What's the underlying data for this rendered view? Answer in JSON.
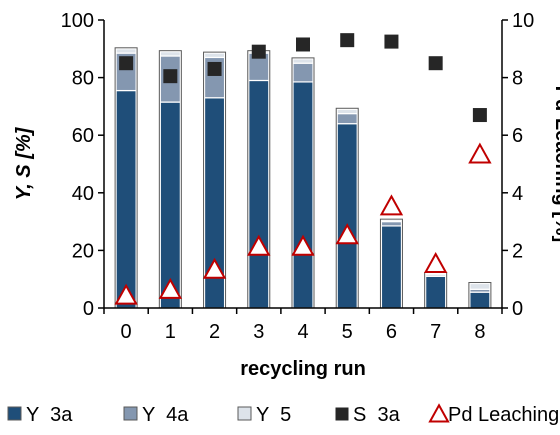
{
  "chart_data": {
    "type": "bar",
    "xlabel": "recycling run",
    "ylabel_left": "Y, S [%]",
    "ylabel_right": "Pd-Leaching [%]",
    "categories": [
      "0",
      "1",
      "2",
      "3",
      "4",
      "5",
      "6",
      "7",
      "8"
    ],
    "ylim_left": [
      0,
      100
    ],
    "yticks_left": [
      "0",
      "20",
      "40",
      "60",
      "80",
      "100"
    ],
    "ylim_right": [
      0,
      10
    ],
    "yticks_right": [
      "0",
      "2",
      "4",
      "6",
      "8",
      "10"
    ],
    "grid": false,
    "stacked_bars": [
      {
        "name": "Y 3a",
        "color": "#1f4e79",
        "values": [
          75.5,
          71.5,
          73,
          79,
          78.5,
          64,
          28.5,
          11,
          5.5
        ]
      },
      {
        "name": "Y 4a",
        "color": "#8497b0",
        "values": [
          13,
          16,
          14,
          9.5,
          6.5,
          3.5,
          1.5,
          0.5,
          1
        ]
      },
      {
        "name": "Y 5",
        "color": "#dde3ea",
        "values": [
          1.5,
          1.5,
          1.5,
          0.5,
          1.5,
          1.5,
          0.5,
          0.5,
          2
        ]
      }
    ],
    "scatter_series": [
      {
        "name": "S 3a",
        "axis": "left",
        "marker": "square",
        "color": "#262626",
        "values": [
          85,
          80.5,
          83,
          89,
          91.5,
          93,
          92.5,
          85,
          67
        ]
      },
      {
        "name": "Pd Leaching",
        "axis": "right",
        "marker": "triangle-open",
        "color": "#c00000",
        "values": [
          0.4,
          0.6,
          1.3,
          2.1,
          2.1,
          2.5,
          3.5,
          1.5,
          5.3
        ]
      }
    ],
    "legend": {
      "position": "bottom",
      "entries": [
        {
          "label": "Y  3a",
          "symbol": "box",
          "color": "#1f4e79"
        },
        {
          "label": "Y  4a",
          "symbol": "box",
          "color": "#8497b0"
        },
        {
          "label": "Y  5",
          "symbol": "box",
          "color": "#dde3ea"
        },
        {
          "label": "S  3a",
          "symbol": "square",
          "color": "#262626"
        },
        {
          "label": "Pd Leaching",
          "symbol": "triangle-open",
          "color": "#c00000"
        }
      ]
    }
  }
}
